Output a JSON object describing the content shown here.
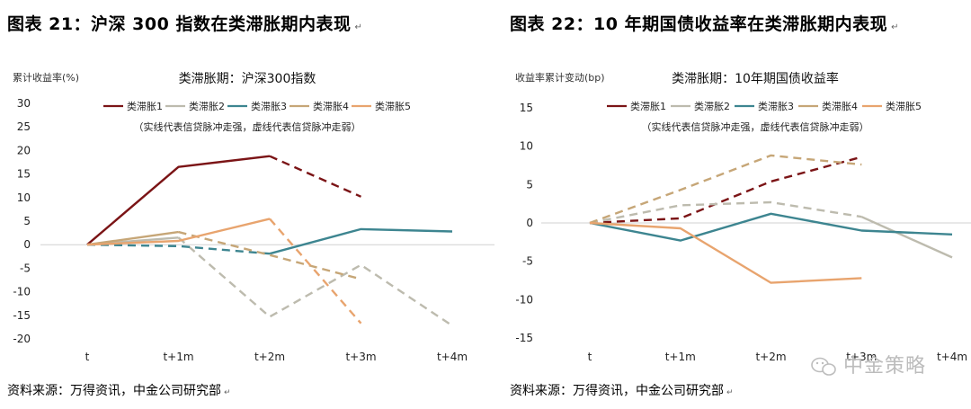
{
  "left": {
    "panel_title": "图表 21：沪深 300 指数在类滞胀期内表现",
    "title_mark": "↵",
    "source": "资料来源：万得资讯，中金公司研究部",
    "source_mark": "↵",
    "chart_data": {
      "type": "line",
      "title": "类滞胀期：沪深300指数",
      "subtitle": "（实线代表信贷脉冲走强，虚线代表信贷脉冲走弱）",
      "ylabel": "累计收益率(%)",
      "xlabel": "",
      "categories": [
        "t",
        "t+1m",
        "t+2m",
        "t+3m",
        "t+4m"
      ],
      "ylim": [
        -20,
        30
      ],
      "yticks": [
        30,
        25,
        20,
        15,
        10,
        5,
        0,
        -5,
        -10,
        -15,
        -20
      ],
      "series": [
        {
          "name": "类滞胀1",
          "color": "#7B1416",
          "segments": [
            {
              "style": "solid",
              "points": [
                [
                  0,
                  0
                ],
                [
                  1,
                  16.5
                ],
                [
                  2,
                  18.8
                ]
              ]
            },
            {
              "style": "dashed",
              "points": [
                [
                  2,
                  18.8
                ],
                [
                  3,
                  10.2
                ]
              ]
            }
          ]
        },
        {
          "name": "类滞胀2",
          "color": "#BDBBAE",
          "segments": [
            {
              "style": "solid",
              "points": [
                [
                  0,
                  0
                ],
                [
                  1,
                  1.5
                ]
              ]
            },
            {
              "style": "dashed",
              "points": [
                [
                  1,
                  1.5
                ],
                [
                  2,
                  -15.3
                ],
                [
                  3,
                  -4.3
                ],
                [
                  4,
                  -17.2
                ]
              ]
            }
          ]
        },
        {
          "name": "类滞胀3",
          "color": "#3D8590",
          "segments": [
            {
              "style": "dashed",
              "points": [
                [
                  0,
                  0
                ],
                [
                  1,
                  -0.3
                ],
                [
                  2,
                  -1.9
                ]
              ]
            },
            {
              "style": "solid",
              "points": [
                [
                  2,
                  -1.9
                ],
                [
                  3,
                  3.3
                ],
                [
                  4,
                  2.8
                ]
              ]
            }
          ]
        },
        {
          "name": "类滞胀4",
          "color": "#C6A677",
          "segments": [
            {
              "style": "solid",
              "points": [
                [
                  0,
                  0
                ],
                [
                  1,
                  2.7
                ]
              ]
            },
            {
              "style": "dashed",
              "points": [
                [
                  1,
                  2.7
                ],
                [
                  2,
                  -2.2
                ],
                [
                  3,
                  -7.3
                ]
              ]
            }
          ]
        },
        {
          "name": "类滞胀5",
          "color": "#E8A46E",
          "segments": [
            {
              "style": "solid",
              "points": [
                [
                  0,
                  0
                ],
                [
                  1,
                  0.8
                ],
                [
                  2,
                  5.5
                ]
              ]
            },
            {
              "style": "dashed",
              "points": [
                [
                  2,
                  5.5
                ],
                [
                  3,
                  -16.7
                ]
              ]
            }
          ]
        }
      ]
    }
  },
  "right": {
    "panel_title": "图表 22：10 年期国债收益率在类滞胀期内表现",
    "title_mark": "↵",
    "source": "资料来源：万得资讯，中金公司研究部",
    "source_mark": "↵",
    "watermark": "中金策略",
    "chart_data": {
      "type": "line",
      "title": "类滞胀期：10年期国债收益率",
      "subtitle": "（实线代表信贷脉冲走强，虚线代表信贷脉冲走弱）",
      "ylabel": "收益率累计变动(bp)",
      "xlabel": "",
      "categories": [
        "t",
        "t+1m",
        "t+2m",
        "t+3m",
        "t+4m"
      ],
      "ylim": [
        -15,
        15
      ],
      "yticks": [
        15,
        10,
        5,
        0,
        -5,
        -10,
        -15
      ],
      "series": [
        {
          "name": "类滞胀1",
          "color": "#7B1416",
          "segments": [
            {
              "style": "dashed",
              "points": [
                [
                  0,
                  0
                ],
                [
                  1,
                  0.6
                ],
                [
                  2,
                  5.4
                ],
                [
                  3,
                  8.6
                ]
              ]
            }
          ]
        },
        {
          "name": "类滞胀2",
          "color": "#BDBBAE",
          "segments": [
            {
              "style": "dashed",
              "points": [
                [
                  0,
                  0
                ],
                [
                  1,
                  2.3
                ],
                [
                  2,
                  2.7
                ],
                [
                  3,
                  0.8
                ]
              ]
            },
            {
              "style": "solid",
              "points": [
                [
                  3,
                  0.8
                ],
                [
                  4,
                  -4.5
                ]
              ]
            }
          ]
        },
        {
          "name": "类滞胀3",
          "color": "#3D8590",
          "segments": [
            {
              "style": "solid",
              "points": [
                [
                  0,
                  0
                ],
                [
                  1,
                  -2.3
                ],
                [
                  2,
                  1.2
                ],
                [
                  3,
                  -1.0
                ],
                [
                  4,
                  -1.5
                ]
              ]
            }
          ]
        },
        {
          "name": "类滞胀4",
          "color": "#C6A677",
          "segments": [
            {
              "style": "dashed",
              "points": [
                [
                  0,
                  0
                ],
                [
                  1,
                  4.3
                ],
                [
                  2,
                  8.8
                ],
                [
                  3,
                  7.6
                ]
              ]
            }
          ]
        },
        {
          "name": "类滞胀5",
          "color": "#E8A46E",
          "segments": [
            {
              "style": "solid",
              "points": [
                [
                  0,
                  0
                ],
                [
                  1,
                  -0.7
                ],
                [
                  2,
                  -7.8
                ],
                [
                  3,
                  -7.2
                ]
              ]
            }
          ]
        }
      ]
    }
  }
}
